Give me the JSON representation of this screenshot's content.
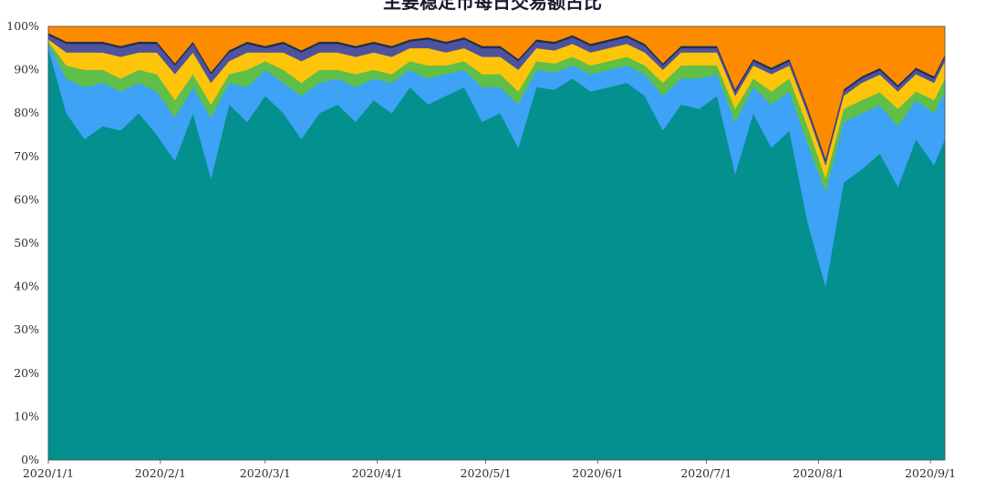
{
  "chart_data": {
    "type": "area",
    "stacked": true,
    "normalized": true,
    "title": "主要稳定币每日交易额占比",
    "x_range": [
      "2020/1/1",
      "2020/9/5"
    ],
    "x_ticks": [
      "2020/1/1",
      "2020/2/1",
      "2020/3/1",
      "2020/4/1",
      "2020/5/1",
      "2020/6/1",
      "2020/7/1",
      "2020/8/1",
      "2020/9/1"
    ],
    "y_ticks": [
      "0%",
      "10%",
      "20%",
      "30%",
      "40%",
      "50%",
      "60%",
      "70%",
      "80%",
      "90%",
      "100%"
    ],
    "ylim": [
      0,
      100
    ],
    "grid": false,
    "legend": "none",
    "colors": [
      "#04908f",
      "#3ea2f7",
      "#5fbf46",
      "#fec40a",
      "#4f529d",
      "#1c2f4d",
      "#fc8b00"
    ],
    "x": [
      "2020/1/1",
      "2020/1/6",
      "2020/1/11",
      "2020/1/16",
      "2020/1/21",
      "2020/1/26",
      "2020/1/31",
      "2020/2/5",
      "2020/2/10",
      "2020/2/15",
      "2020/2/20",
      "2020/2/25",
      "2020/3/1",
      "2020/3/6",
      "2020/3/11",
      "2020/3/16",
      "2020/3/21",
      "2020/3/26",
      "2020/3/31",
      "2020/4/5",
      "2020/4/10",
      "2020/4/15",
      "2020/4/20",
      "2020/4/25",
      "2020/4/30",
      "2020/5/5",
      "2020/5/10",
      "2020/5/15",
      "2020/5/20",
      "2020/5/25",
      "2020/5/30",
      "2020/6/4",
      "2020/6/9",
      "2020/6/14",
      "2020/6/19",
      "2020/6/24",
      "2020/6/29",
      "2020/7/4",
      "2020/7/9",
      "2020/7/14",
      "2020/7/19",
      "2020/7/24",
      "2020/7/29",
      "2020/8/3",
      "2020/8/8",
      "2020/8/13",
      "2020/8/18",
      "2020/8/23",
      "2020/8/28",
      "2020/9/2",
      "2020/9/5"
    ],
    "series": [
      {
        "values": [
          95,
          80,
          74,
          77,
          76,
          80,
          75,
          69,
          80,
          65,
          82,
          78,
          84,
          80,
          74,
          80,
          82,
          78,
          83,
          80,
          86,
          82,
          84,
          86,
          78,
          80,
          72,
          86,
          85,
          88,
          85,
          86,
          87,
          84,
          76,
          82,
          81,
          84,
          66,
          80,
          72,
          76,
          55,
          40,
          64,
          67,
          70,
          63,
          74,
          68,
          74
        ]
      },
      {
        "values": [
          1,
          8,
          12,
          10,
          9,
          7,
          10,
          10,
          6,
          14,
          5,
          8,
          6,
          7,
          10,
          7,
          6,
          8,
          5,
          7,
          4,
          6,
          5,
          4,
          8,
          6,
          10,
          4,
          4,
          3,
          4,
          4,
          4,
          5,
          8,
          6,
          7,
          5,
          12,
          6,
          10,
          9,
          18,
          22,
          14,
          13,
          11,
          14,
          9,
          12,
          11
        ]
      },
      {
        "values": [
          0.5,
          3,
          4,
          3,
          3,
          3,
          4,
          4,
          3,
          3,
          2,
          4,
          2,
          3,
          3,
          3,
          2,
          3,
          2,
          2,
          2,
          3,
          2,
          2,
          3,
          3,
          3,
          2,
          2,
          2,
          2,
          2,
          2,
          2,
          3,
          3,
          3,
          2,
          3,
          2,
          3,
          3,
          4,
          3,
          3,
          3,
          3,
          4,
          2,
          3,
          3
        ]
      },
      {
        "values": [
          0.5,
          3,
          4,
          4,
          5,
          4,
          5,
          6,
          5,
          5,
          3,
          4,
          2,
          4,
          5,
          4,
          4,
          4,
          4,
          4,
          3,
          4,
          3,
          3,
          4,
          4,
          5,
          3,
          3,
          3,
          3,
          3,
          3,
          3,
          3,
          3,
          3,
          3,
          3,
          3,
          4,
          3,
          3,
          3,
          3,
          4,
          4,
          4,
          4,
          4,
          4
        ]
      },
      {
        "values": [
          1,
          2,
          2,
          2,
          2,
          2,
          2,
          2,
          2,
          2,
          2,
          2,
          1,
          2,
          2,
          2,
          2,
          2,
          2,
          2,
          1.5,
          2,
          2,
          2,
          2,
          2,
          2,
          1.5,
          1.5,
          1.5,
          1.5,
          1.5,
          1.5,
          1.5,
          1,
          1,
          1,
          1,
          1,
          1,
          1,
          1,
          1,
          1,
          1,
          1,
          1,
          1,
          1,
          1,
          1
        ]
      },
      {
        "values": [
          0.5,
          0.5,
          0.5,
          0.5,
          0.5,
          0.5,
          0.5,
          0.5,
          0.5,
          0.5,
          0.5,
          0.5,
          0.5,
          0.5,
          0.5,
          0.5,
          0.5,
          0.5,
          0.5,
          0.5,
          0.5,
          0.5,
          0.5,
          0.5,
          0.5,
          0.5,
          0.5,
          0.5,
          0.5,
          0.5,
          0.5,
          0.5,
          0.5,
          0.5,
          0.5,
          0.5,
          0.5,
          0.5,
          0.5,
          0.5,
          0.5,
          0.5,
          0.5,
          0.5,
          0.5,
          0.5,
          0.5,
          0.5,
          0.5,
          0.5,
          0.5
        ]
      },
      {
        "values": [
          1.5,
          3.5,
          3.5,
          3.5,
          4.5,
          3.5,
          3.5,
          8.5,
          3.5,
          10.5,
          5.5,
          3.5,
          4.5,
          3.5,
          5.5,
          3.5,
          3.5,
          4.5,
          3.5,
          4.5,
          3,
          2.5,
          3.5,
          2.5,
          4.5,
          4.5,
          7.5,
          3,
          3.5,
          2,
          4,
          3,
          2,
          4,
          8.5,
          4.5,
          4.5,
          4.5,
          14.5,
          7.5,
          9.5,
          7.5,
          18.5,
          30.5,
          14.5,
          11.5,
          9.5,
          13.5,
          9.5,
          11.5,
          6.5
        ]
      }
    ]
  }
}
